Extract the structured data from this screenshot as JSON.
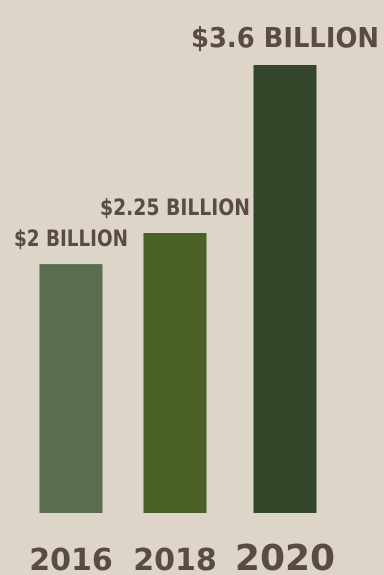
{
  "chart_data": {
    "type": "bar",
    "categories": [
      "2016",
      "2018",
      "2020"
    ],
    "values": [
      2,
      2.25,
      3.6
    ],
    "value_labels": [
      "$2 BILLION",
      "$2.25 BILLION",
      "$3.6 BILLION"
    ],
    "unit": "billion USD",
    "bar_colors": [
      "#596d50",
      "#4c6125",
      "#33462a"
    ],
    "label_color": "#5a4b44",
    "background": "#ddd5c8",
    "grid": false,
    "legend": "none"
  }
}
